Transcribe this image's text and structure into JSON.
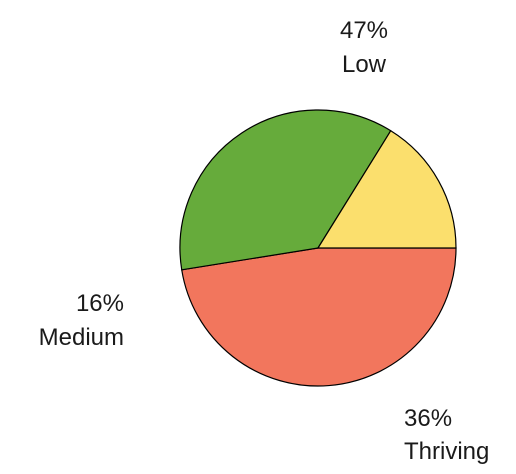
{
  "chart_data": {
    "type": "pie",
    "slices": [
      {
        "label": "Low",
        "value": 47,
        "value_label": "47%",
        "color": "#f2765d"
      },
      {
        "label": "Thriving",
        "value": 36,
        "value_label": "36%",
        "color": "#66ab3b"
      },
      {
        "label": "Medium",
        "value": 16,
        "value_label": "16%",
        "color": "#fbdf6d"
      }
    ],
    "start_angle_deg": 0,
    "direction": "clockwise",
    "legend": "none",
    "title": ""
  }
}
